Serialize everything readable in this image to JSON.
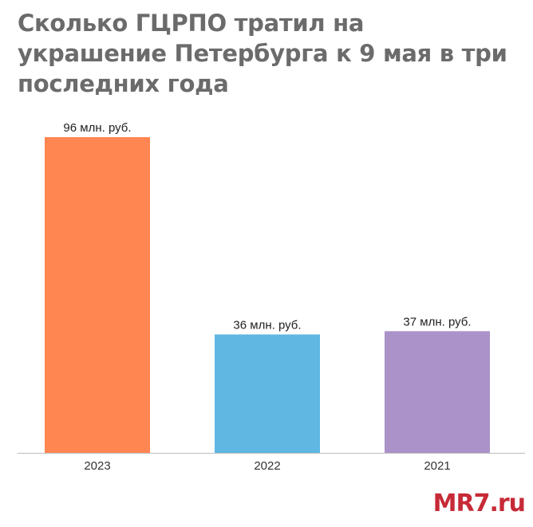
{
  "title": "Сколько ГЦРПО тратил на украшение Петербурга к 9 мая в три последних года",
  "watermark": "MR7.ru",
  "chart_data": {
    "type": "bar",
    "categories": [
      "2023",
      "2022",
      "2021"
    ],
    "values": [
      96,
      36,
      37
    ],
    "value_labels": [
      "96 млн. руб.",
      "36 млн. руб.",
      "37 млн. руб."
    ],
    "colors": [
      "#FF8551",
      "#5FB7E2",
      "#AB92C8"
    ],
    "unit": "млн. руб.",
    "title": "",
    "xlabel": "",
    "ylabel": "",
    "ylim": [
      0,
      96
    ],
    "grid": false,
    "legend": "none"
  }
}
